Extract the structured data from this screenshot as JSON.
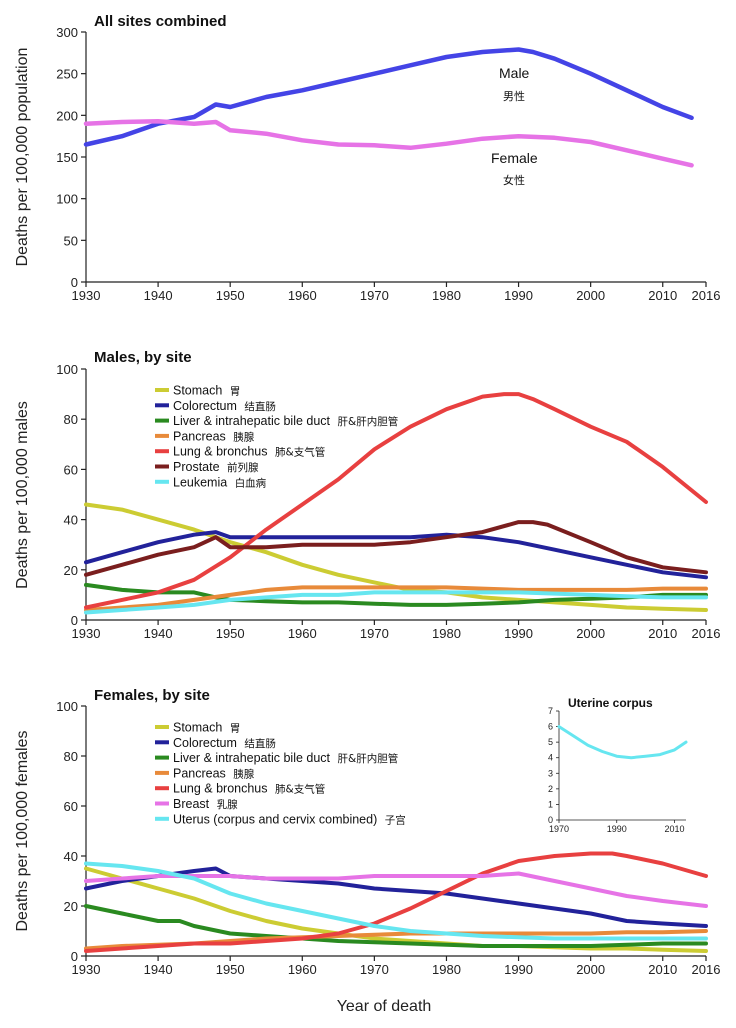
{
  "chart_data": [
    {
      "id": "all",
      "type": "line",
      "title": "All sites combined",
      "ylabel": "Deaths per 100,000 population",
      "xlabel": "",
      "xlim": [
        1930,
        2016
      ],
      "ylim": [
        0,
        300
      ],
      "xticks": [
        "1930",
        "1940",
        "1950",
        "1960",
        "1970",
        "1980",
        "1990",
        "2000",
        "2010",
        "2016"
      ],
      "yticks": [
        "0",
        "50",
        "100",
        "150",
        "200",
        "250",
        "300"
      ],
      "series": [
        {
          "name": "Male",
          "sub": "男性",
          "color": "#4444e6",
          "x": [
            1930,
            1935,
            1940,
            1945,
            1948,
            1950,
            1955,
            1960,
            1965,
            1970,
            1975,
            1980,
            1985,
            1990,
            1992,
            1995,
            2000,
            2005,
            2010,
            2014
          ],
          "y": [
            165,
            175,
            190,
            198,
            213,
            210,
            222,
            230,
            240,
            250,
            260,
            270,
            276,
            279,
            276,
            268,
            250,
            230,
            210,
            197
          ]
        },
        {
          "name": "Female",
          "sub": "女性",
          "color": "#e673e6",
          "x": [
            1930,
            1935,
            1940,
            1945,
            1948,
            1950,
            1955,
            1960,
            1965,
            1970,
            1975,
            1980,
            1985,
            1990,
            1995,
            2000,
            2005,
            2010,
            2014
          ],
          "y": [
            190,
            192,
            193,
            190,
            192,
            182,
            178,
            170,
            165,
            164,
            161,
            166,
            172,
            175,
            173,
            168,
            158,
            148,
            140
          ]
        }
      ]
    },
    {
      "id": "males",
      "type": "line",
      "title": "Males, by site",
      "ylabel": "Deaths per 100,000 males",
      "xlabel": "",
      "xlim": [
        1930,
        2016
      ],
      "ylim": [
        0,
        100
      ],
      "xticks": [
        "1930",
        "1940",
        "1950",
        "1960",
        "1970",
        "1980",
        "1990",
        "2000",
        "2010",
        "2016"
      ],
      "yticks": [
        "0",
        "20",
        "40",
        "60",
        "80",
        "100"
      ],
      "series": [
        {
          "name": "Stomach",
          "sub": "胃",
          "color": "#cccc33",
          "x": [
            1930,
            1935,
            1940,
            1945,
            1950,
            1955,
            1960,
            1965,
            1970,
            1975,
            1980,
            1985,
            1990,
            1995,
            2000,
            2005,
            2010,
            2016
          ],
          "y": [
            46,
            44,
            40,
            36,
            31,
            27,
            22,
            18,
            15,
            12,
            11,
            9,
            8,
            7,
            6,
            5,
            4.5,
            4
          ]
        },
        {
          "name": "Colorectum",
          "sub": "结直肠",
          "color": "#22229a",
          "x": [
            1930,
            1935,
            1940,
            1945,
            1948,
            1950,
            1955,
            1960,
            1965,
            1970,
            1975,
            1980,
            1985,
            1990,
            1995,
            2000,
            2005,
            2010,
            2016
          ],
          "y": [
            23,
            27,
            31,
            34,
            35,
            33,
            33,
            33,
            33,
            33,
            33,
            34,
            33,
            31,
            28,
            25,
            22,
            19,
            17
          ]
        },
        {
          "name": "Liver & intrahepatic bile duct",
          "sub": "肝&肝内胆管",
          "color": "#2a8a20",
          "x": [
            1930,
            1935,
            1940,
            1945,
            1948,
            1950,
            1955,
            1960,
            1965,
            1970,
            1975,
            1980,
            1985,
            1990,
            1995,
            2000,
            2005,
            2010,
            2016
          ],
          "y": [
            14,
            12,
            11,
            11,
            9,
            8,
            7.5,
            7,
            7,
            6.5,
            6,
            6,
            6.5,
            7,
            8,
            8.5,
            9,
            10,
            10
          ]
        },
        {
          "name": "Pancreas",
          "sub": "胰腺",
          "color": "#e88a3a",
          "x": [
            1930,
            1935,
            1940,
            1945,
            1950,
            1955,
            1960,
            1965,
            1970,
            1975,
            1980,
            1985,
            1990,
            1995,
            2000,
            2005,
            2010,
            2016
          ],
          "y": [
            4,
            5,
            6,
            8,
            10,
            12,
            13,
            13,
            13,
            13,
            13,
            12.5,
            12,
            12,
            12,
            12,
            12.5,
            12.5
          ]
        },
        {
          "name": "Lung & bronchus",
          "sub": "肺&支气管",
          "color": "#e84040",
          "x": [
            1930,
            1935,
            1940,
            1945,
            1950,
            1955,
            1960,
            1965,
            1970,
            1975,
            1980,
            1985,
            1988,
            1990,
            1992,
            1995,
            2000,
            2005,
            2010,
            2016
          ],
          "y": [
            5,
            8,
            11,
            16,
            25,
            36,
            46,
            56,
            68,
            77,
            84,
            89,
            90,
            90,
            88,
            84,
            77,
            71,
            61,
            47
          ]
        },
        {
          "name": "Prostate",
          "sub": "前列腺",
          "color": "#7a1e1e",
          "x": [
            1930,
            1935,
            1940,
            1945,
            1948,
            1950,
            1955,
            1960,
            1965,
            1970,
            1975,
            1980,
            1985,
            1990,
            1992,
            1994,
            2000,
            2005,
            2010,
            2016
          ],
          "y": [
            18,
            22,
            26,
            29,
            33,
            29,
            29,
            30,
            30,
            30,
            31,
            33,
            35,
            39,
            39,
            38,
            31,
            25,
            21,
            19
          ]
        },
        {
          "name": "Leukemia",
          "sub": "白血病",
          "color": "#66e6f0",
          "x": [
            1930,
            1935,
            1940,
            1945,
            1950,
            1955,
            1960,
            1965,
            1970,
            1975,
            1980,
            1985,
            1990,
            1995,
            2000,
            2005,
            2010,
            2016
          ],
          "y": [
            3,
            4,
            5,
            6,
            8,
            9,
            10,
            10,
            11,
            11,
            11,
            11,
            11,
            10.5,
            10,
            9.5,
            9,
            9
          ]
        }
      ]
    },
    {
      "id": "females",
      "type": "line",
      "title": "Females, by site",
      "ylabel": "Deaths per 100,000 females",
      "xlabel": "Year of death",
      "xlim": [
        1930,
        2016
      ],
      "ylim": [
        0,
        100
      ],
      "xticks": [
        "1930",
        "1940",
        "1950",
        "1960",
        "1970",
        "1980",
        "1990",
        "2000",
        "2010",
        "2016"
      ],
      "yticks": [
        "0",
        "20",
        "40",
        "60",
        "80",
        "100"
      ],
      "series": [
        {
          "name": "Stomach",
          "sub": "胃",
          "color": "#cccc33",
          "x": [
            1930,
            1935,
            1940,
            1945,
            1950,
            1955,
            1960,
            1965,
            1970,
            1975,
            1980,
            1985,
            1990,
            1995,
            2000,
            2005,
            2010,
            2016
          ],
          "y": [
            35,
            31,
            27,
            23,
            18,
            14,
            11,
            9,
            7,
            6,
            5,
            4,
            4,
            3.5,
            3,
            3,
            2.5,
            2
          ]
        },
        {
          "name": "Colorectum",
          "sub": "结直肠",
          "color": "#22229a",
          "x": [
            1930,
            1935,
            1940,
            1945,
            1948,
            1950,
            1955,
            1960,
            1965,
            1970,
            1975,
            1980,
            1985,
            1990,
            1995,
            2000,
            2005,
            2010,
            2016
          ],
          "y": [
            27,
            30,
            32,
            34,
            35,
            32,
            31,
            30,
            29,
            27,
            26,
            25,
            23,
            21,
            19,
            17,
            14,
            13,
            12
          ]
        },
        {
          "name": "Liver & intrahepatic bile duct",
          "sub": "肝&肝内胆管",
          "color": "#2a8a20",
          "x": [
            1930,
            1935,
            1940,
            1943,
            1945,
            1950,
            1955,
            1960,
            1965,
            1970,
            1975,
            1980,
            1985,
            1990,
            1995,
            2000,
            2005,
            2010,
            2016
          ],
          "y": [
            20,
            17,
            14,
            14,
            12,
            9,
            8,
            7,
            6,
            5.5,
            5,
            4.5,
            4,
            4,
            4,
            4,
            4.5,
            5,
            5
          ]
        },
        {
          "name": "Pancreas",
          "sub": "胰腺",
          "color": "#e88a3a",
          "x": [
            1930,
            1935,
            1940,
            1945,
            1950,
            1955,
            1960,
            1965,
            1970,
            1975,
            1980,
            1985,
            1990,
            1995,
            2000,
            2005,
            2010,
            2016
          ],
          "y": [
            3,
            4,
            4.5,
            5,
            6,
            7,
            7.5,
            8,
            8.5,
            9,
            9,
            9,
            9,
            9,
            9,
            9.5,
            9.5,
            10
          ]
        },
        {
          "name": "Lung & bronchus",
          "sub": "肺&支气管",
          "color": "#e84040",
          "x": [
            1930,
            1935,
            1940,
            1945,
            1950,
            1955,
            1960,
            1965,
            1970,
            1975,
            1980,
            1985,
            1990,
            1995,
            2000,
            2003,
            2005,
            2010,
            2016
          ],
          "y": [
            2,
            3,
            4,
            5,
            5,
            6,
            7,
            9,
            13,
            19,
            26,
            33,
            38,
            40,
            41,
            41,
            40,
            37,
            32
          ]
        },
        {
          "name": "Breast",
          "sub": "乳腺",
          "color": "#e673e6",
          "x": [
            1930,
            1935,
            1940,
            1945,
            1950,
            1955,
            1960,
            1965,
            1970,
            1975,
            1980,
            1985,
            1990,
            1995,
            2000,
            2005,
            2010,
            2016
          ],
          "y": [
            30,
            31,
            32,
            32,
            32,
            31,
            31,
            31,
            32,
            32,
            32,
            32,
            33,
            30,
            27,
            24,
            22,
            20
          ]
        },
        {
          "name": "Uterus (corpus and cervix combined)",
          "sub": "子宫",
          "color": "#66e6f0",
          "x": [
            1930,
            1935,
            1940,
            1945,
            1950,
            1955,
            1960,
            1965,
            1970,
            1975,
            1980,
            1985,
            1990,
            1995,
            2000,
            2005,
            2010,
            2016
          ],
          "y": [
            37,
            36,
            34,
            31,
            25,
            21,
            18,
            15,
            12,
            10,
            9,
            8,
            7.5,
            7,
            7,
            7,
            7,
            7
          ]
        }
      ],
      "inset": {
        "title": "Uterine corpus",
        "type": "line",
        "xlim": [
          1970,
          2014
        ],
        "ylim": [
          0,
          7
        ],
        "xticks": [
          "1970",
          "1990",
          "2010"
        ],
        "yticks": [
          "0",
          "1",
          "2",
          "3",
          "4",
          "5",
          "6",
          "7"
        ],
        "series": [
          {
            "name": "Uterine corpus",
            "color": "#66e6f0",
            "x": [
              1970,
              1975,
              1980,
              1985,
              1990,
              1995,
              2000,
              2005,
              2010,
              2014
            ],
            "y": [
              6.0,
              5.4,
              4.8,
              4.4,
              4.1,
              4.0,
              4.1,
              4.2,
              4.5,
              5.0
            ]
          }
        ]
      }
    }
  ]
}
